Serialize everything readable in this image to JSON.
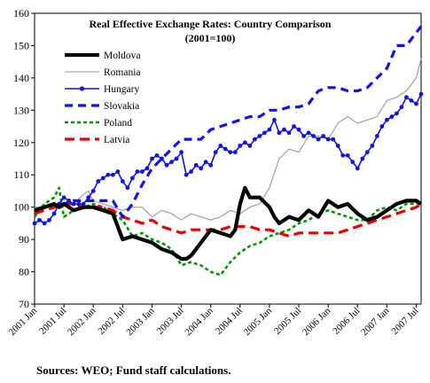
{
  "source_note": "Sources: WEO; Fund staff calculations.",
  "chart_data": {
    "type": "line",
    "title_lines": [
      "Real Effective Exchange Rates: Country Comparison",
      "(2001=100)"
    ],
    "ylim": [
      70,
      160
    ],
    "yticks": [
      70,
      80,
      90,
      100,
      110,
      120,
      130,
      140,
      150,
      160
    ],
    "xlim": [
      0,
      79
    ],
    "x_unit": "months since 2001 Jan",
    "xtick_positions": [
      0,
      6,
      12,
      18,
      24,
      30,
      36,
      42,
      48,
      54,
      60,
      66,
      72,
      78
    ],
    "xtick_labels": [
      "2001 Jan",
      "2001 Jul",
      "2002 Jan",
      "2002 Jul",
      "2003 Jan",
      "2003 Jul",
      "2004 Jan",
      "2004 Jul",
      "2005 Jan",
      "2005 Jul",
      "2006 Jan",
      "2006 Jul",
      "2007 Jan",
      "2007 Jul"
    ],
    "grid": false,
    "legend_placement": "top-left",
    "series": [
      {
        "name": "Moldova",
        "color": "#000000",
        "style": "thick",
        "x": [
          0,
          2,
          4,
          5,
          6,
          8,
          10,
          12,
          14,
          16,
          17,
          18,
          20,
          22,
          24,
          26,
          28,
          30,
          31,
          32,
          34,
          36,
          38,
          40,
          41,
          42,
          43,
          44,
          46,
          48,
          49,
          50,
          52,
          54,
          56,
          58,
          60,
          62,
          64,
          66,
          68,
          70,
          72,
          74,
          76,
          78,
          79
        ],
        "values": [
          99,
          100,
          101,
          100,
          101,
          99,
          100,
          100,
          99,
          98,
          94,
          90,
          91,
          90,
          89,
          87,
          86,
          84,
          84,
          85,
          89,
          93,
          92,
          91,
          93,
          101,
          106,
          103,
          103,
          100,
          97,
          95,
          97,
          96,
          99,
          97,
          102,
          100,
          101,
          98,
          96,
          97,
          99,
          101,
          102,
          102,
          101
        ]
      },
      {
        "name": "Romania",
        "color": "#999999",
        "style": "thin",
        "x": [
          0,
          2,
          4,
          6,
          8,
          10,
          11,
          12,
          14,
          16,
          18,
          20,
          22,
          24,
          26,
          28,
          30,
          32,
          34,
          36,
          38,
          40,
          42,
          44,
          46,
          48,
          50,
          52,
          54,
          56,
          58,
          60,
          62,
          64,
          66,
          68,
          70,
          72,
          74,
          76,
          78,
          79
        ],
        "values": [
          100,
          100,
          101,
          101,
          101,
          104,
          105,
          102,
          101,
          100,
          99,
          100,
          100,
          97,
          99,
          98,
          96,
          98,
          97,
          96,
          97,
          99,
          98,
          100,
          101,
          106,
          115,
          118,
          117,
          122,
          122,
          121,
          126,
          128,
          126,
          127,
          128,
          133,
          134,
          136,
          140,
          146
        ]
      },
      {
        "name": "Hungary",
        "color": "#1111ee",
        "style": "marker",
        "x": [
          0,
          1,
          2,
          3,
          4,
          5,
          6,
          7,
          8,
          9,
          10,
          11,
          12,
          13,
          14,
          15,
          16,
          17,
          18,
          19,
          20,
          21,
          22,
          23,
          24,
          25,
          26,
          27,
          28,
          29,
          30,
          31,
          32,
          33,
          34,
          35,
          36,
          37,
          38,
          39,
          40,
          41,
          42,
          43,
          44,
          45,
          46,
          47,
          48,
          49,
          50,
          51,
          52,
          53,
          54,
          55,
          56,
          57,
          58,
          59,
          60,
          61,
          62,
          63,
          64,
          65,
          66,
          67,
          68,
          69,
          70,
          71,
          72,
          73,
          74,
          75,
          76,
          77,
          78,
          79
        ],
        "values": [
          95,
          96,
          95,
          96,
          98,
          101,
          103,
          102,
          101,
          101,
          101,
          103,
          105,
          108,
          109,
          110,
          110,
          111,
          108,
          106,
          109,
          111,
          111,
          112,
          115,
          116,
          115,
          113,
          114,
          115,
          117,
          110,
          111,
          113,
          112,
          114,
          113,
          117,
          119,
          118,
          117,
          117,
          119,
          120,
          119,
          121,
          122,
          123,
          124,
          127,
          123,
          124,
          123,
          125,
          124,
          122,
          123,
          122,
          121,
          122,
          121,
          121,
          119,
          116,
          116,
          114,
          112,
          115,
          117,
          119,
          122,
          125,
          127,
          128,
          129,
          131,
          134,
          133,
          132,
          135
        ]
      },
      {
        "name": "Slovakia",
        "color": "#1111ee",
        "style": "dashed-thick",
        "x": [
          0,
          2,
          4,
          6,
          8,
          10,
          12,
          14,
          16,
          18,
          20,
          22,
          24,
          26,
          28,
          30,
          32,
          34,
          36,
          38,
          40,
          42,
          44,
          46,
          48,
          50,
          52,
          54,
          56,
          58,
          60,
          62,
          64,
          66,
          68,
          70,
          72,
          74,
          76,
          78,
          79
        ],
        "values": [
          99,
          100,
          101,
          101,
          102,
          102,
          102,
          102,
          102,
          97,
          101,
          107,
          112,
          115,
          118,
          121,
          121,
          121,
          124,
          125,
          126,
          127,
          128,
          128,
          130,
          130,
          131,
          131,
          132,
          136,
          137,
          137,
          136,
          136,
          137,
          140,
          143,
          150,
          150,
          154,
          156
        ]
      },
      {
        "name": "Poland",
        "color": "#009900",
        "style": "dotted",
        "x": [
          0,
          2,
          4,
          5,
          6,
          8,
          10,
          12,
          14,
          16,
          18,
          20,
          22,
          24,
          26,
          28,
          30,
          32,
          34,
          36,
          38,
          40,
          42,
          44,
          46,
          48,
          50,
          52,
          54,
          56,
          58,
          60,
          62,
          64,
          66,
          68,
          70,
          72,
          74,
          76,
          78,
          79
        ],
        "values": [
          97,
          101,
          103,
          106,
          97,
          99,
          100,
          101,
          100,
          98,
          96,
          91,
          92,
          90,
          89,
          87,
          82,
          83,
          82,
          80,
          79,
          83,
          86,
          88,
          89,
          91,
          92,
          93,
          95,
          96,
          98,
          99,
          98,
          97,
          96,
          96,
          99,
          100,
          99,
          101,
          101,
          102
        ]
      },
      {
        "name": "Latvia",
        "color": "#ee0000",
        "style": "dashed",
        "x": [
          0,
          2,
          4,
          6,
          8,
          10,
          12,
          14,
          16,
          18,
          20,
          22,
          24,
          26,
          28,
          30,
          32,
          34,
          36,
          38,
          40,
          42,
          44,
          46,
          48,
          50,
          52,
          54,
          56,
          58,
          60,
          62,
          64,
          66,
          68,
          70,
          72,
          74,
          76,
          78,
          79
        ],
        "values": [
          98,
          99,
          100,
          101,
          101,
          100,
          100,
          100,
          99,
          97,
          96,
          95,
          96,
          94,
          93,
          92,
          93,
          93,
          93,
          93,
          94,
          94,
          94,
          93,
          93,
          92,
          91,
          92,
          92,
          92,
          92,
          92,
          93,
          94,
          95,
          96,
          97,
          98,
          99,
          100,
          101
        ]
      }
    ]
  }
}
